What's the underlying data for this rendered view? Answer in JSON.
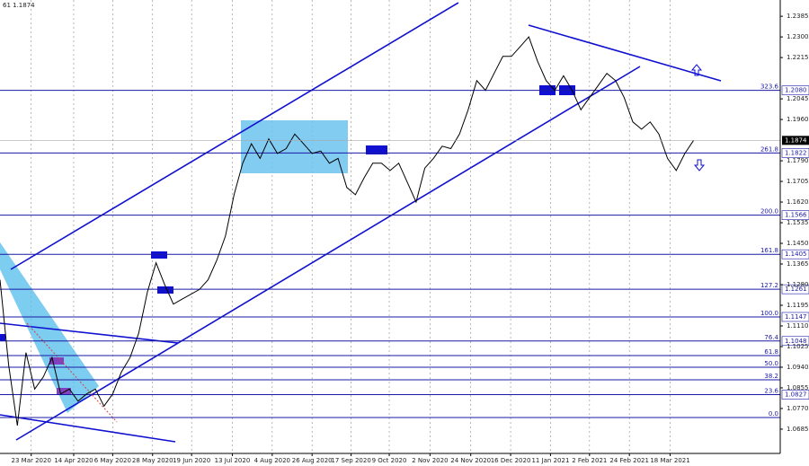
{
  "chart_data": {
    "type": "line",
    "title": "61 1.1874",
    "values": [
      1.13,
      1.095,
      1.07,
      1.1,
      1.085,
      1.09,
      1.098,
      1.083,
      1.085,
      1.08,
      1.083,
      1.085,
      1.078,
      1.083,
      1.092,
      1.098,
      1.108,
      1.125,
      1.137,
      1.128,
      1.12,
      1.122,
      1.124,
      1.126,
      1.13,
      1.138,
      1.148,
      1.165,
      1.178,
      1.186,
      1.18,
      1.188,
      1.182,
      1.184,
      1.19,
      1.186,
      1.182,
      1.183,
      1.178,
      1.18,
      1.168,
      1.165,
      1.172,
      1.178,
      1.178,
      1.175,
      1.178,
      1.17,
      1.162,
      1.176,
      1.18,
      1.185,
      1.184,
      1.19,
      1.2,
      1.212,
      1.208,
      1.215,
      1.222,
      1.222,
      1.226,
      1.23,
      1.22,
      1.212,
      1.208,
      1.214,
      1.208,
      1.2,
      1.205,
      1.21,
      1.215,
      1.212,
      1.205,
      1.195,
      1.192,
      1.195,
      1.19,
      1.18,
      1.175,
      1.182,
      1.1874
    ],
    "color": "#000000",
    "last_price": 1.1874,
    "xlim": [
      0,
      90
    ],
    "xticks": [
      {
        "value": 3.6,
        "label": "23 Mar 2020"
      },
      {
        "value": 8.5,
        "label": "14 Apr 2020"
      },
      {
        "value": 13,
        "label": "6 May 2020"
      },
      {
        "value": 17.6,
        "label": "28 May 2020"
      },
      {
        "value": 22.1,
        "label": "19 Jun 2020"
      },
      {
        "value": 26.8,
        "label": "13 Jul 2020"
      },
      {
        "value": 31.4,
        "label": "4 Aug 2020"
      },
      {
        "value": 36,
        "label": "26 Aug 2020"
      },
      {
        "value": 40.5,
        "label": "17 Sep 2020"
      },
      {
        "value": 44.9,
        "label": "9 Oct 2020"
      },
      {
        "value": 49.6,
        "label": "2 Nov 2020"
      },
      {
        "value": 54.3,
        "label": "24 Nov 2020"
      },
      {
        "value": 58.9,
        "label": "16 Dec 2020"
      },
      {
        "value": 63.5,
        "label": "11 Jan 2021"
      },
      {
        "value": 68,
        "label": "2 Feb 2021"
      },
      {
        "value": 72.6,
        "label": "24 Feb 2021"
      },
      {
        "value": 77.3,
        "label": "18 Mar 2021"
      }
    ],
    "ylim": [
      1.0585,
      1.2452
    ],
    "yticks": [
      1.2385,
      {
        "value": 1.23,
        "label": "1.2300"
      },
      1.2215,
      1.2045,
      {
        "value": 1.196,
        "label": "1.1960"
      },
      {
        "value": 1.179,
        "label": "1.1790"
      },
      1.1705,
      {
        "value": 1.162,
        "label": "1.1620"
      },
      1.1535,
      {
        "value": 1.145,
        "label": "1.1450"
      },
      1.1365,
      {
        "value": 1.128,
        "label": "1.1280"
      },
      1.1195,
      {
        "value": 1.111,
        "label": "1.1110"
      },
      1.1025,
      {
        "value": 1.094,
        "label": "1.0940"
      },
      1.0855,
      {
        "value": 1.077,
        "label": "1.0770"
      },
      1.0685
    ],
    "levels": [
      {
        "name": "323.6",
        "value": 1.208,
        "label": "1.2080"
      },
      {
        "name": "261.8",
        "value": 1.1822,
        "label": "1.1822"
      },
      {
        "name": "200.0",
        "value": 1.1566,
        "label": "1.1566"
      },
      {
        "name": "161.8",
        "value": 1.1405,
        "label": "1.1405"
      },
      {
        "name": "127.2",
        "value": 1.1261,
        "label": "1.1261"
      },
      {
        "name": "100.0",
        "value": 1.1147,
        "label": "1.1147"
      },
      {
        "name": "76.4",
        "value": 1.1048,
        "label": "1.1048"
      },
      {
        "name": "61.8",
        "value": 1.0988
      },
      {
        "name": "50.0",
        "value": 1.094
      },
      {
        "name": "38.2",
        "value": 1.0888
      },
      {
        "name": "23.6",
        "value": 1.0827,
        "label": "1.0827"
      },
      {
        "name": "0.0",
        "value": 1.0733
      }
    ],
    "level_color": "#1a1aa6",
    "grid": true
  }
}
